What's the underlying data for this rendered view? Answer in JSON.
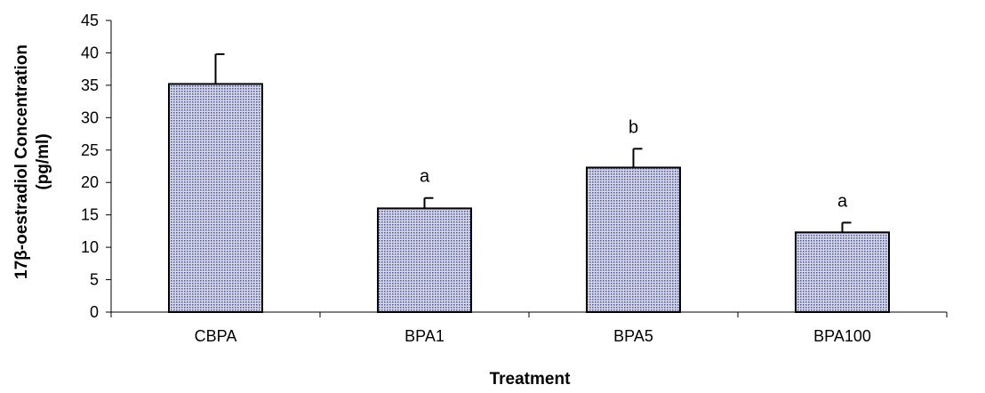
{
  "chart_data": {
    "type": "bar",
    "categories": [
      "CBPA",
      "BPA1",
      "BPA5",
      "BPA100"
    ],
    "values": [
      35.2,
      16.0,
      22.3,
      12.3
    ],
    "error_upper": [
      4.6,
      1.6,
      2.9,
      1.5
    ],
    "significance": [
      "",
      "a",
      "b",
      "a"
    ],
    "xlabel": "Treatment",
    "ylabel_lines": [
      "17β-oestradiol Concentration",
      "(pg/ml)"
    ],
    "ylim": [
      0,
      45
    ],
    "yticks": [
      0,
      5,
      10,
      15,
      20,
      25,
      30,
      35,
      40,
      45
    ],
    "grid": false,
    "bar_color": "#a8acd0"
  }
}
